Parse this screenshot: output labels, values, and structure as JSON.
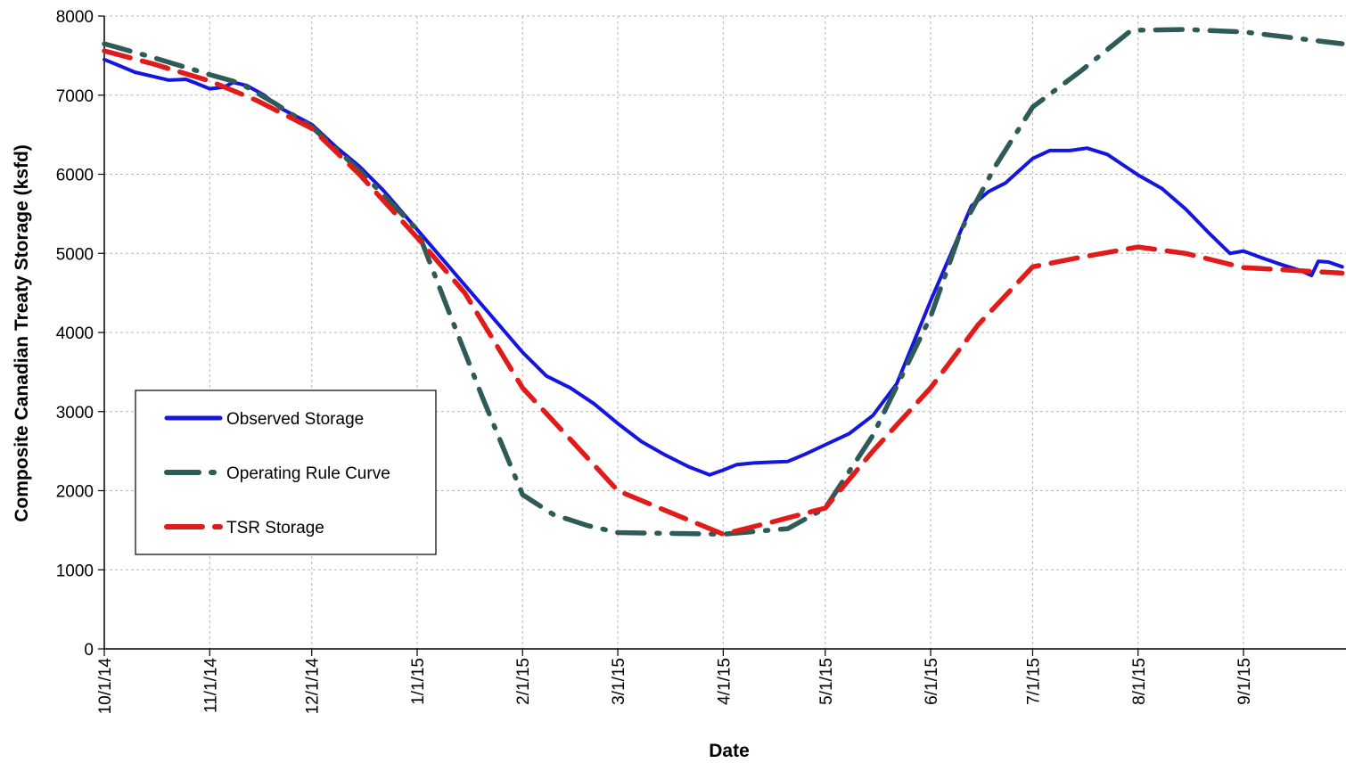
{
  "chart_data": {
    "type": "line",
    "xlabel": "Date",
    "ylabel": "Composite Canadian Treaty Storage (ksfd)",
    "ylim": [
      0,
      8000
    ],
    "xlim": [
      "2014-10-01",
      "2015-09-30"
    ],
    "yticks": [
      "0",
      "1000",
      "2000",
      "3000",
      "4000",
      "5000",
      "6000",
      "7000",
      "8000"
    ],
    "xticks": [
      {
        "date": "2014-10-01",
        "label": "10/1/14"
      },
      {
        "date": "2014-11-01",
        "label": "11/1/14"
      },
      {
        "date": "2014-12-01",
        "label": "12/1/14"
      },
      {
        "date": "2015-01-01",
        "label": "1/1/15"
      },
      {
        "date": "2015-02-01",
        "label": "2/1/15"
      },
      {
        "date": "2015-03-01",
        "label": "3/1/15"
      },
      {
        "date": "2015-04-01",
        "label": "4/1/15"
      },
      {
        "date": "2015-05-01",
        "label": "5/1/15"
      },
      {
        "date": "2015-06-01",
        "label": "6/1/15"
      },
      {
        "date": "2015-07-01",
        "label": "7/1/15"
      },
      {
        "date": "2015-08-01",
        "label": "8/1/15"
      },
      {
        "date": "2015-09-01",
        "label": "9/1/15"
      }
    ],
    "grid": true,
    "legend_position": "left-middle",
    "series": [
      {
        "name": "Observed Storage",
        "color": "#1515e0",
        "style": "solid",
        "points": [
          [
            "2014-10-01",
            7450
          ],
          [
            "2014-10-05",
            7380
          ],
          [
            "2014-10-10",
            7290
          ],
          [
            "2014-10-15",
            7240
          ],
          [
            "2014-10-20",
            7190
          ],
          [
            "2014-10-25",
            7200
          ],
          [
            "2014-10-28",
            7150
          ],
          [
            "2014-11-01",
            7080
          ],
          [
            "2014-11-05",
            7100
          ],
          [
            "2014-11-08",
            7160
          ],
          [
            "2014-11-12",
            7120
          ],
          [
            "2014-11-17",
            7000
          ],
          [
            "2014-11-22",
            6830
          ],
          [
            "2014-11-27",
            6720
          ],
          [
            "2014-12-01",
            6630
          ],
          [
            "2014-12-08",
            6350
          ],
          [
            "2014-12-15",
            6100
          ],
          [
            "2014-12-22",
            5800
          ],
          [
            "2015-01-01",
            5300
          ],
          [
            "2015-01-08",
            4950
          ],
          [
            "2015-01-15",
            4600
          ],
          [
            "2015-01-22",
            4250
          ],
          [
            "2015-02-01",
            3750
          ],
          [
            "2015-02-08",
            3450
          ],
          [
            "2015-02-15",
            3300
          ],
          [
            "2015-02-22",
            3100
          ],
          [
            "2015-03-01",
            2850
          ],
          [
            "2015-03-08",
            2620
          ],
          [
            "2015-03-15",
            2450
          ],
          [
            "2015-03-22",
            2300
          ],
          [
            "2015-03-28",
            2200
          ],
          [
            "2015-04-01",
            2260
          ],
          [
            "2015-04-05",
            2330
          ],
          [
            "2015-04-10",
            2350
          ],
          [
            "2015-04-15",
            2360
          ],
          [
            "2015-04-20",
            2370
          ],
          [
            "2015-04-25",
            2460
          ],
          [
            "2015-05-01",
            2580
          ],
          [
            "2015-05-08",
            2720
          ],
          [
            "2015-05-15",
            2950
          ],
          [
            "2015-05-22",
            3350
          ],
          [
            "2015-06-01",
            4400
          ],
          [
            "2015-06-08",
            5100
          ],
          [
            "2015-06-13",
            5600
          ],
          [
            "2015-06-18",
            5780
          ],
          [
            "2015-06-23",
            5890
          ],
          [
            "2015-07-01",
            6200
          ],
          [
            "2015-07-06",
            6300
          ],
          [
            "2015-07-12",
            6300
          ],
          [
            "2015-07-17",
            6330
          ],
          [
            "2015-07-23",
            6250
          ],
          [
            "2015-08-01",
            5990
          ],
          [
            "2015-08-08",
            5820
          ],
          [
            "2015-08-15",
            5560
          ],
          [
            "2015-08-22",
            5250
          ],
          [
            "2015-08-28",
            5000
          ],
          [
            "2015-09-01",
            5030
          ],
          [
            "2015-09-06",
            4950
          ],
          [
            "2015-09-12",
            4860
          ],
          [
            "2015-09-18",
            4780
          ],
          [
            "2015-09-21",
            4720
          ],
          [
            "2015-09-23",
            4900
          ],
          [
            "2015-09-26",
            4890
          ],
          [
            "2015-09-30",
            4830
          ]
        ]
      },
      {
        "name": "Operating Rule Curve",
        "color": "#2e5a58",
        "style": "dashdot",
        "points": [
          [
            "2014-10-01",
            7650
          ],
          [
            "2014-10-15",
            7480
          ],
          [
            "2014-11-01",
            7260
          ],
          [
            "2014-11-10",
            7150
          ],
          [
            "2014-11-20",
            6900
          ],
          [
            "2014-12-01",
            6600
          ],
          [
            "2014-12-15",
            6050
          ],
          [
            "2015-01-01",
            5300
          ],
          [
            "2015-01-10",
            4300
          ],
          [
            "2015-01-20",
            3200
          ],
          [
            "2015-02-01",
            1950
          ],
          [
            "2015-02-10",
            1700
          ],
          [
            "2015-02-20",
            1560
          ],
          [
            "2015-03-01",
            1470
          ],
          [
            "2015-04-01",
            1450
          ],
          [
            "2015-04-20",
            1520
          ],
          [
            "2015-05-01",
            1780
          ],
          [
            "2015-05-15",
            2700
          ],
          [
            "2015-06-01",
            4200
          ],
          [
            "2015-06-10",
            5300
          ],
          [
            "2015-06-20",
            6100
          ],
          [
            "2015-07-01",
            6850
          ],
          [
            "2015-07-15",
            7300
          ],
          [
            "2015-07-30",
            7820
          ],
          [
            "2015-08-15",
            7830
          ],
          [
            "2015-09-01",
            7800
          ],
          [
            "2015-09-30",
            7650
          ]
        ]
      },
      {
        "name": "TSR Storage",
        "color": "#e11a1a",
        "style": "dashed",
        "points": [
          [
            "2014-10-01",
            7560
          ],
          [
            "2014-10-15",
            7400
          ],
          [
            "2014-11-01",
            7180
          ],
          [
            "2014-11-15",
            6930
          ],
          [
            "2014-12-01",
            6580
          ],
          [
            "2014-12-15",
            6000
          ],
          [
            "2015-01-01",
            5200
          ],
          [
            "2015-01-15",
            4500
          ],
          [
            "2015-02-01",
            3300
          ],
          [
            "2015-02-15",
            2650
          ],
          [
            "2015-03-01",
            2000
          ],
          [
            "2015-03-15",
            1750
          ],
          [
            "2015-04-01",
            1450
          ],
          [
            "2015-04-15",
            1600
          ],
          [
            "2015-05-01",
            1780
          ],
          [
            "2015-05-15",
            2500
          ],
          [
            "2015-06-01",
            3300
          ],
          [
            "2015-06-15",
            4100
          ],
          [
            "2015-07-01",
            4830
          ],
          [
            "2015-07-15",
            4950
          ],
          [
            "2015-08-01",
            5080
          ],
          [
            "2015-08-15",
            5000
          ],
          [
            "2015-09-01",
            4820
          ],
          [
            "2015-09-30",
            4750
          ]
        ]
      }
    ]
  }
}
